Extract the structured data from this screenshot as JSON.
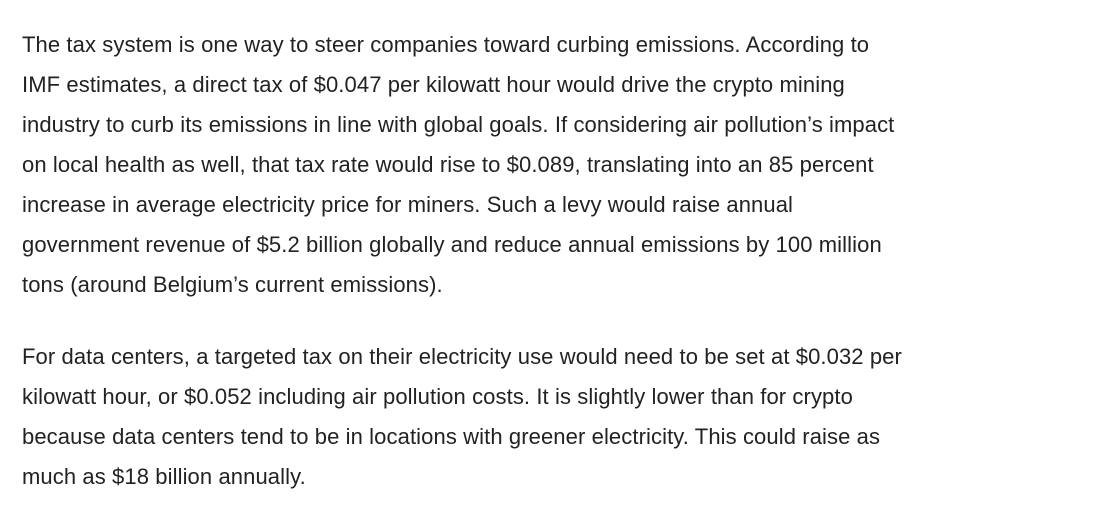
{
  "article": {
    "paragraphs": [
      {
        "lines": [
          "The tax system is one way to steer companies toward curbing emissions. According to",
          "IMF estimates, a direct tax of $0.047 per kilowatt hour would drive the crypto mining",
          "industry to curb its emissions in line with global goals. If considering air pollution’s impact",
          "on local health as well, that tax rate would rise to $0.089, translating into an 85 percent",
          "increase in average electricity price for miners. Such a levy would raise annual",
          "government revenue of $5.2 billion globally and reduce annual emissions by 100 million",
          "tons (around Belgium’s current emissions)."
        ]
      },
      {
        "lines": [
          "For data centers, a targeted tax on their electricity use would need to be set at $0.032 per",
          "kilowatt hour, or $0.052 including air pollution costs. It is slightly lower than for crypto",
          "because data centers tend to be in locations with greener electricity. This could raise as",
          "much as $18 billion annually."
        ]
      }
    ]
  }
}
